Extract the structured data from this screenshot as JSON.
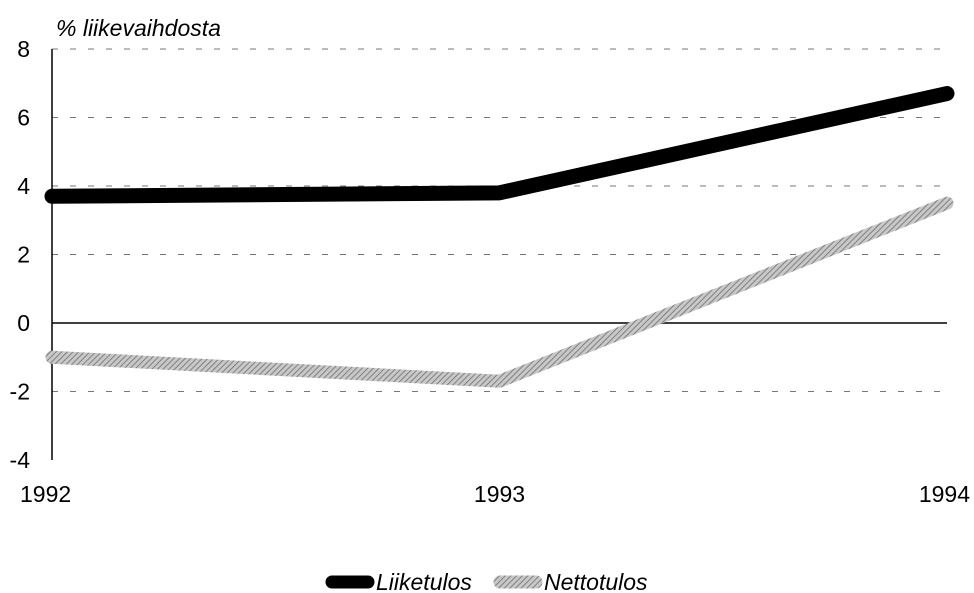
{
  "chart_data": {
    "type": "line",
    "ylabel": "% liikevaihdosta",
    "x": [
      "1992",
      "1993",
      "1994"
    ],
    "ylim": [
      -4,
      8
    ],
    "yticks": [
      8,
      6,
      4,
      2,
      0,
      -2,
      -4
    ],
    "grid": "dashed horizontal",
    "legend_position": "bottom-center",
    "series": [
      {
        "name": "Liiketulos",
        "values": [
          3.7,
          3.8,
          6.7
        ],
        "color": "#000000",
        "style": "solid"
      },
      {
        "name": "Nettotulos",
        "values": [
          -1.0,
          -1.7,
          3.5
        ],
        "color": "#9a9a9a",
        "style": "hatched"
      }
    ]
  }
}
